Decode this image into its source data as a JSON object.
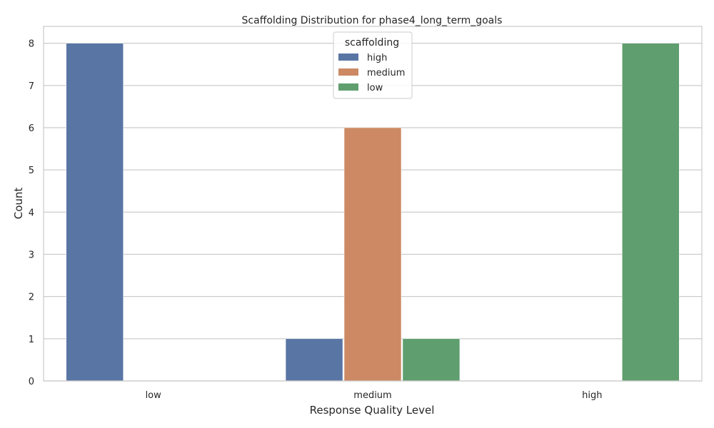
{
  "chart_data": {
    "type": "bar",
    "title": "Scaffolding Distribution for phase4_long_term_goals",
    "xlabel": "Response Quality Level",
    "ylabel": "Count",
    "categories": [
      "low",
      "medium",
      "high"
    ],
    "ylim": [
      0,
      8.4
    ],
    "yticks": [
      "0",
      "1",
      "2",
      "3",
      "4",
      "5",
      "6",
      "7",
      "8"
    ],
    "grid": true,
    "legend": {
      "title": "scaffolding",
      "placement": "top-center"
    },
    "series": [
      {
        "name": "high",
        "color": "#5975A4",
        "values": [
          8,
          1,
          0
        ]
      },
      {
        "name": "medium",
        "color": "#CC8963",
        "values": [
          0,
          6,
          0
        ]
      },
      {
        "name": "low",
        "color": "#5F9E6E",
        "values": [
          0,
          1,
          8
        ]
      }
    ]
  }
}
